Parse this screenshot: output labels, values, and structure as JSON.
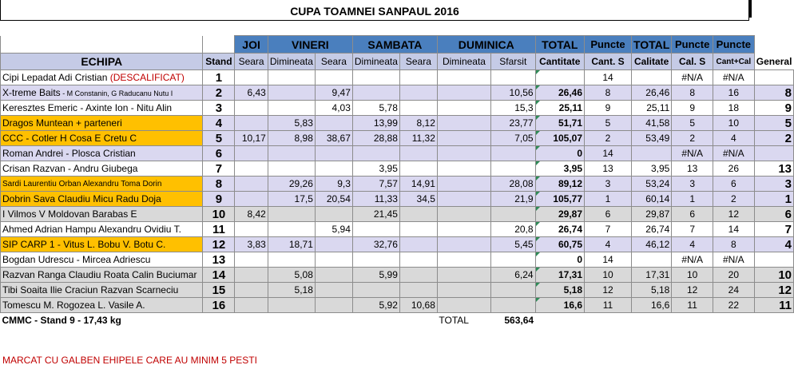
{
  "title": "CUPA TOAMNEI SANPAUL  2016",
  "header": {
    "echipa": "ECHIPA",
    "stand": "Stand",
    "days": [
      "JOI",
      "VINERI",
      "SAMBATA",
      "DUMINICA"
    ],
    "total": "TOTAL",
    "puncte1": "Puncte",
    "total2": "TOTAL",
    "puncte2": "Puncte",
    "puncte3": "Puncte",
    "sub": [
      "Seara",
      "Dimineata",
      "Seara",
      "Dimineata",
      "Seara",
      "Dimineata",
      "Sfarsit",
      "Cantitate",
      "Cant. S",
      "Calitate",
      "Cal. S",
      "Cant+Cal",
      "General"
    ]
  },
  "rows": [
    {
      "team": "Cipi Lepadat Adi Cristian ",
      "team_extra": "(DESCALIFICAT)",
      "stand": "1",
      "v": [
        "",
        "",
        "",
        "",
        "",
        "",
        "",
        "",
        "14",
        "",
        "#N/A",
        "#N/A",
        ""
      ]
    },
    {
      "team": "X-treme Baits",
      "team_extra": " - M Constanin, G Raducanu Nutu I",
      "stand": "2",
      "v": [
        "6,43",
        "",
        "9,47",
        "",
        "",
        "",
        "10,56",
        "26,46",
        "8",
        "26,46",
        "8",
        "16",
        "8"
      ]
    },
    {
      "team": "Keresztes Emeric - Axinte Ion - Nitu Alin",
      "team_extra": "",
      "stand": "3",
      "v": [
        "",
        "",
        "4,03",
        "5,78",
        "",
        "",
        "15,3",
        "25,11",
        "9",
        "25,11",
        "9",
        "18",
        "9"
      ]
    },
    {
      "team": "Dragos Muntean + parteneri",
      "team_extra": "",
      "stand": "4",
      "v": [
        "",
        "5,83",
        "",
        "13,99",
        "8,12",
        "",
        "23,77",
        "51,71",
        "5",
        "41,58",
        "5",
        "10",
        "5"
      ]
    },
    {
      "team": "CCC - Cotler H Cosa E Cretu C",
      "team_extra": "",
      "stand": "5",
      "v": [
        "10,17",
        "8,98",
        "38,67",
        "28,88",
        "11,32",
        "",
        "7,05",
        "105,07",
        "2",
        "53,49",
        "2",
        "4",
        "2"
      ]
    },
    {
      "team": "Roman Andrei - Plosca Cristian",
      "team_extra": "",
      "stand": "6",
      "v": [
        "",
        "",
        "",
        "",
        "",
        "",
        "",
        "0",
        "14",
        "",
        "#N/A",
        "#N/A",
        ""
      ]
    },
    {
      "team": "Crisan Razvan - Andru Giubega",
      "team_extra": "",
      "stand": "7",
      "v": [
        "",
        "",
        "",
        "3,95",
        "",
        "",
        "",
        "3,95",
        "13",
        "3,95",
        "13",
        "26",
        "13"
      ]
    },
    {
      "team": "Sardi Laurentiu  Orban Alexandru  Toma Dorin",
      "team_extra": "",
      "stand": "8",
      "v": [
        "",
        "29,26",
        "9,3",
        "7,57",
        "14,91",
        "",
        "28,08",
        "89,12",
        "3",
        "53,24",
        "3",
        "6",
        "3"
      ]
    },
    {
      "team": "Dobrin Sava Claudiu Micu Radu Doja",
      "team_extra": "",
      "stand": "9",
      "v": [
        "",
        "17,5",
        "20,54",
        "11,33",
        "34,5",
        "",
        "21,9",
        "105,77",
        "1",
        "60,14",
        "1",
        "2",
        "1"
      ]
    },
    {
      "team": "I Vilmos V Moldovan Barabas E",
      "team_extra": "",
      "stand": "10",
      "v": [
        "8,42",
        "",
        "",
        "21,45",
        "",
        "",
        "",
        "29,87",
        "6",
        "29,87",
        "6",
        "12",
        "6"
      ]
    },
    {
      "team": "Ahmed Adrian Hampu Alexandru Ovidiu T.",
      "team_extra": "",
      "stand": "11",
      "v": [
        "",
        "",
        "5,94",
        "",
        "",
        "",
        "20,8",
        "26,74",
        "7",
        "26,74",
        "7",
        "14",
        "7"
      ]
    },
    {
      "team": "SIP CARP 1 - Vitus L. Bobu V. Botu C.",
      "team_extra": "",
      "stand": "12",
      "v": [
        "3,83",
        "18,71",
        "",
        "32,76",
        "",
        "",
        "5,45",
        "60,75",
        "4",
        "46,12",
        "4",
        "8",
        "4"
      ]
    },
    {
      "team": "Bogdan Udrescu - Mircea Adriescu",
      "team_extra": "",
      "stand": "13",
      "v": [
        "",
        "",
        "",
        "",
        "",
        "",
        "",
        "0",
        "14",
        "",
        "#N/A",
        "#N/A",
        ""
      ]
    },
    {
      "team": "Razvan Ranga Claudiu Roata Calin Buciumar",
      "team_extra": "",
      "stand": "14",
      "v": [
        "",
        "5,08",
        "",
        "5,99",
        "",
        "",
        "6,24",
        "17,31",
        "10",
        "17,31",
        "10",
        "20",
        "10"
      ]
    },
    {
      "team": "Tibi Soaita Ilie Craciun Razvan Scarneciu",
      "team_extra": "",
      "stand": "15",
      "v": [
        "",
        "5,18",
        "",
        "",
        "",
        "",
        "",
        "5,18",
        "12",
        "5,18",
        "12",
        "24",
        "12"
      ]
    },
    {
      "team": "Tomescu M.  Rogozea L. Vasile A.",
      "team_extra": "",
      "stand": "16",
      "v": [
        "",
        "",
        "",
        "5,92",
        "10,68",
        "",
        "",
        "16,6",
        "11",
        "16,6",
        "11",
        "22",
        "11"
      ]
    }
  ],
  "footer": {
    "cmmc": "CMMC - Stand 9 - 17,43 kg",
    "total_label": "TOTAL",
    "total_value": "563,64",
    "note": "MARCAT CU GALBEN EHIPELE CARE AU MINIM 5 PESTI"
  }
}
